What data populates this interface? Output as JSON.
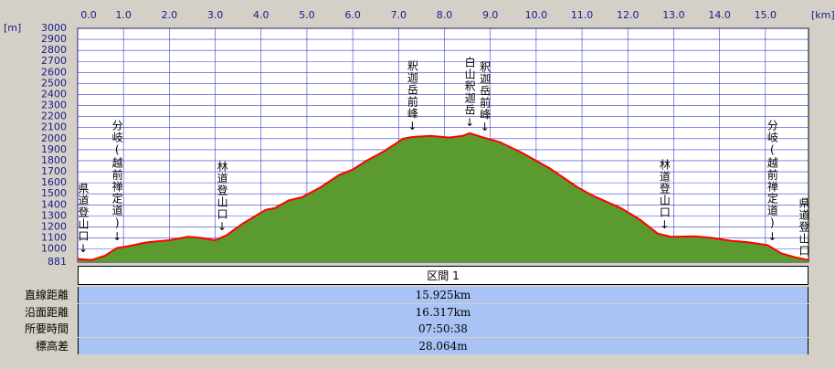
{
  "chart_data": {
    "type": "area",
    "x_unit": "[km]",
    "y_unit": "[m]",
    "x": [
      0,
      0.3,
      0.6,
      0.86,
      1.1,
      1.5,
      2.0,
      2.4,
      2.7,
      3.0,
      3.25,
      3.6,
      4.1,
      4.3,
      4.6,
      4.9,
      5.3,
      5.7,
      6.0,
      6.3,
      6.7,
      7.1,
      7.3,
      7.7,
      8.1,
      8.4,
      8.55,
      8.85,
      9.2,
      9.7,
      10.3,
      10.9,
      11.25,
      11.85,
      12.25,
      12.65,
      12.95,
      13.45,
      13.85,
      14.25,
      14.65,
      15.05,
      15.35,
      15.65,
      15.94
    ],
    "values": [
      910,
      900,
      940,
      1010,
      1025,
      1060,
      1080,
      1110,
      1100,
      1080,
      1125,
      1230,
      1355,
      1370,
      1440,
      1470,
      1560,
      1670,
      1720,
      1800,
      1890,
      2000,
      2015,
      2025,
      2010,
      2025,
      2050,
      2010,
      1970,
      1870,
      1730,
      1560,
      1480,
      1370,
      1270,
      1140,
      1110,
      1115,
      1100,
      1075,
      1060,
      1035,
      960,
      925,
      900
    ],
    "line_color": "#ff0000",
    "fill_color": "#5b9a2e",
    "grid_color": "#3c3cd2",
    "xlim": [
      0,
      15.94
    ],
    "ylim": [
      881,
      3000
    ],
    "xticks": [
      {
        "value": 0,
        "label": "0.0"
      },
      {
        "value": 1,
        "label": "1.0"
      },
      {
        "value": 2,
        "label": "2.0"
      },
      {
        "value": 3,
        "label": "3.0"
      },
      {
        "value": 4,
        "label": "4.0"
      },
      {
        "value": 5,
        "label": "5.0"
      },
      {
        "value": 6,
        "label": "6.0"
      },
      {
        "value": 7,
        "label": "7.0"
      },
      {
        "value": 8,
        "label": "8.0"
      },
      {
        "value": 9,
        "label": "9.0"
      },
      {
        "value": 10,
        "label": "10.0"
      },
      {
        "value": 11,
        "label": "11.0"
      },
      {
        "value": 12,
        "label": "12.0"
      },
      {
        "value": 13,
        "label": "13.0"
      },
      {
        "value": 14,
        "label": "14.0"
      },
      {
        "value": 15,
        "label": "15.0"
      }
    ],
    "yticks": [
      881,
      1000,
      1100,
      1200,
      1300,
      1400,
      1500,
      1600,
      1700,
      1800,
      1900,
      2000,
      2100,
      2200,
      2300,
      2400,
      2500,
      2600,
      2700,
      2800,
      2900,
      3000
    ],
    "annotations": [
      {
        "x": 0,
        "text": "県道登山口↓"
      },
      {
        "x": 0.86,
        "text": "分岐(越前禅定道)↓"
      },
      {
        "x": 3.15,
        "text": "林道登山口↓"
      },
      {
        "x": 7.3,
        "text": "釈迦岳前峰↓"
      },
      {
        "x": 8.55,
        "text": "白山釈迦岳↓"
      },
      {
        "x": 8.88,
        "text": "釈迦岳前峰↓"
      },
      {
        "x": 12.8,
        "text": "林道登山口↓"
      },
      {
        "x": 15.15,
        "text": "分岐(越前禅定道)↓"
      },
      {
        "x": 15.94,
        "text": "県道登山口"
      }
    ]
  },
  "table": {
    "header": "区間 1",
    "rows": [
      [
        "直線距離",
        "15.925km"
      ],
      [
        "沿面距離",
        "16.317km"
      ],
      [
        "所要時間",
        "07:50:38"
      ],
      [
        "標高差",
        "28.064m"
      ]
    ]
  }
}
